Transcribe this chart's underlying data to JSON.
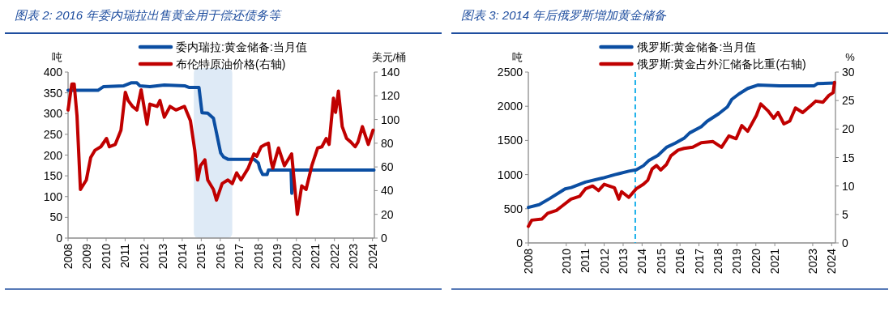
{
  "chart_data": [
    {
      "type": "line",
      "title": "图表 2:  2016 年委内瑞拉出售黄金用于偿还债务等",
      "ylabel": "吨",
      "y2label": "美元/桶",
      "legend": "top",
      "xlim": [
        2008,
        2024.1
      ],
      "xticks": [
        2008,
        2009,
        2010,
        2011,
        2012,
        2013,
        2014,
        2015,
        2016,
        2017,
        2018,
        2019,
        2020,
        2021,
        2022,
        2023,
        2024
      ],
      "ylim": [
        0,
        400
      ],
      "yticks": [
        0,
        50,
        100,
        150,
        200,
        250,
        300,
        350,
        400
      ],
      "y2lim": [
        0,
        140
      ],
      "y2ticks": [
        0,
        20,
        40,
        60,
        80,
        100,
        120,
        140
      ],
      "bands": [
        {
          "axis": "x",
          "from": 2014.61,
          "to": 2016.63,
          "color": "#deeaf6"
        }
      ],
      "series": [
        {
          "name": "委内瑞拉:黄金储备:当月值",
          "color": "#0b4ea2",
          "x": [
            2008.0,
            2009.57,
            2009.87,
            2010.93,
            2011.31,
            2011.62,
            2011.77,
            2012.3,
            2013.06,
            2014.12,
            2014.35,
            2014.88,
            2015.04,
            2015.34,
            2015.64,
            2015.8,
            2016.02,
            2016.18,
            2016.4,
            2017.77,
            2018.0,
            2018.08,
            2018.23,
            2018.46,
            2018.53,
            2019.72,
            2019.76,
            2019.81,
            2024.08
          ],
          "values": [
            356,
            356,
            365,
            367,
            374,
            374,
            367,
            365,
            369,
            367,
            363,
            363,
            302,
            301,
            289,
            254,
            205,
            195,
            190,
            190,
            181,
            167,
            153,
            153,
            164,
            164,
            108,
            164,
            164
          ]
        },
        {
          "name": "布伦特原油价格(右轴)",
          "color": "#c00000",
          "axis": "y2",
          "x": [
            2008.0,
            2008.2,
            2008.32,
            2008.47,
            2008.65,
            2008.96,
            2009.19,
            2009.41,
            2009.72,
            2010.02,
            2010.17,
            2010.48,
            2010.78,
            2011.01,
            2011.16,
            2011.39,
            2011.62,
            2011.84,
            2012.15,
            2012.3,
            2012.68,
            2012.83,
            2013.06,
            2013.36,
            2013.67,
            2014.12,
            2014.43,
            2014.66,
            2014.81,
            2014.96,
            2015.19,
            2015.34,
            2015.64,
            2015.8,
            2016.1,
            2016.4,
            2016.63,
            2016.86,
            2017.09,
            2017.47,
            2017.77,
            2017.92,
            2018.15,
            2018.38,
            2018.53,
            2018.68,
            2018.76,
            2019.06,
            2019.37,
            2019.75,
            2020.05,
            2020.28,
            2020.51,
            2020.81,
            2021.12,
            2021.34,
            2021.57,
            2021.72,
            2021.95,
            2022.06,
            2022.21,
            2022.41,
            2022.64,
            2022.86,
            2023.09,
            2023.24,
            2023.47,
            2023.78,
            2024.03
          ],
          "values": [
            108,
            130,
            130,
            103,
            41,
            49,
            68,
            74,
            77,
            84,
            77,
            79,
            91,
            123,
            116,
            111,
            108,
            125,
            96,
            113,
            111,
            116,
            102,
            111,
            108,
            111,
            99,
            74,
            49,
            61,
            66,
            49,
            41,
            32,
            46,
            49,
            46,
            55,
            49,
            59,
            71,
            69,
            77,
            79,
            80,
            64,
            59,
            76,
            61,
            71,
            20,
            44,
            41,
            61,
            76,
            77,
            84,
            79,
            118,
            106,
            124,
            94,
            84,
            81,
            77,
            81,
            94,
            79,
            91
          ]
        }
      ]
    },
    {
      "type": "line",
      "title": "图表 3:  2014 年后俄罗斯增加黄金储备",
      "ylabel": "吨",
      "y2label": "%",
      "legend": "top",
      "xlim": [
        2008,
        2024.2
      ],
      "xticks": [
        2008,
        2010,
        2011,
        2012,
        2013,
        2014,
        2015,
        2016,
        2017,
        2018,
        2019,
        2020,
        2021,
        2023,
        2024
      ],
      "ylim": [
        0,
        2500
      ],
      "yticks": [
        0,
        500,
        1000,
        1500,
        2000,
        2500
      ],
      "y2lim": [
        0,
        30
      ],
      "y2ticks": [
        0,
        5,
        10,
        15,
        20,
        25,
        30
      ],
      "ref_lines": [
        {
          "axis": "x",
          "value": 2013.64,
          "color": "#1cb0ea",
          "line_style": "dashed"
        }
      ],
      "series": [
        {
          "name": "俄罗斯:黄金储备:当月值",
          "color": "#0b4ea2",
          "x": [
            2008.0,
            2008.57,
            2009.13,
            2009.94,
            2010.26,
            2011.01,
            2011.93,
            2012.57,
            2013.3,
            2013.69,
            2014.07,
            2014.37,
            2014.83,
            2015.29,
            2015.75,
            2016.21,
            2016.51,
            2017.12,
            2017.43,
            2018.04,
            2018.5,
            2018.73,
            2019.11,
            2019.57,
            2020.1,
            2021.25,
            2023.08,
            2023.24,
            2024.15
          ],
          "values": [
            520,
            560,
            650,
            790,
            810,
            890,
            950,
            1000,
            1050,
            1070,
            1130,
            1210,
            1280,
            1400,
            1460,
            1530,
            1610,
            1700,
            1780,
            1890,
            1990,
            2100,
            2180,
            2260,
            2310,
            2300,
            2300,
            2330,
            2340
          ]
        },
        {
          "name": "俄罗斯:黄金占外汇储备比重(右轴)",
          "color": "#c00000",
          "axis": "y2",
          "x": [
            2008.0,
            2008.18,
            2008.72,
            2009.02,
            2009.48,
            2009.79,
            2010.25,
            2010.71,
            2011.01,
            2011.39,
            2011.7,
            2012.0,
            2012.54,
            2012.77,
            2012.92,
            2013.3,
            2013.69,
            2014.07,
            2014.3,
            2014.53,
            2014.76,
            2014.98,
            2015.29,
            2015.52,
            2015.9,
            2016.21,
            2016.67,
            2017.12,
            2017.74,
            2018.19,
            2018.58,
            2018.96,
            2019.26,
            2019.57,
            2020.03,
            2020.26,
            2020.64,
            2020.94,
            2021.17,
            2021.48,
            2021.79,
            2022.09,
            2022.47,
            2022.93,
            2023.16,
            2023.54,
            2023.85,
            2024.08,
            2024.15
          ],
          "values": [
            2.9,
            4.0,
            4.2,
            5.2,
            5.7,
            6.5,
            7.7,
            8.2,
            9.5,
            10.0,
            9.2,
            10.3,
            9.7,
            7.7,
            9.0,
            8.0,
            9.5,
            10.3,
            11.0,
            13.0,
            13.6,
            12.8,
            13.8,
            15.3,
            16.3,
            16.6,
            16.8,
            17.6,
            17.8,
            16.8,
            18.8,
            18.3,
            20.6,
            19.6,
            22.4,
            24.4,
            23.2,
            21.9,
            22.9,
            20.9,
            21.4,
            23.7,
            22.9,
            24.2,
            24.9,
            24.7,
            25.9,
            26.4,
            28.2
          ]
        }
      ]
    }
  ]
}
